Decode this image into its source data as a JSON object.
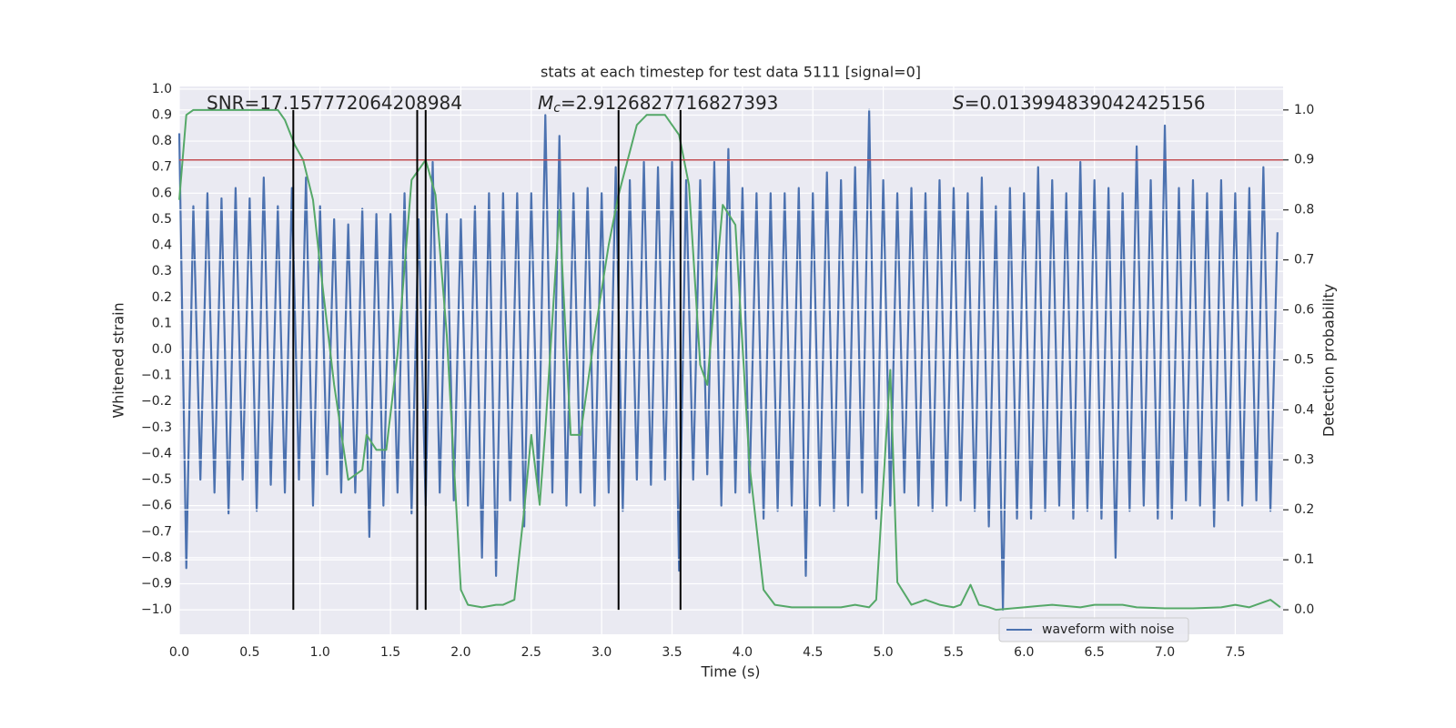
{
  "chart_data": {
    "type": "line",
    "title": "stats at each timestep for test data 5111 [signal=0]",
    "xlabel": "Time (s)",
    "ylabel": "Whitened strain",
    "y2label": "Detection probability",
    "xlim": [
      0,
      7.84
    ],
    "ylim": [
      -1.094,
      1.01
    ],
    "y2lim": [
      -0.049,
      1.047
    ],
    "xticks": [
      {
        "value": 0,
        "label": "0.0"
      },
      0.5,
      {
        "value": 1,
        "label": "1.0"
      },
      1.5,
      {
        "value": 2,
        "label": "2.0"
      },
      2.5,
      {
        "value": 3,
        "label": "3.0"
      },
      3.5,
      {
        "value": 4,
        "label": "4.0"
      },
      4.5,
      {
        "value": 5,
        "label": "5.0"
      },
      5.5,
      {
        "value": 6,
        "label": "6.0"
      },
      6.5,
      {
        "value": 7,
        "label": "7.0"
      },
      7.5
    ],
    "yticks": [
      {
        "value": -1,
        "label": "−1.0"
      },
      {
        "value": -0.9,
        "label": "−0.9"
      },
      {
        "value": -0.8,
        "label": "−0.8"
      },
      {
        "value": -0.7,
        "label": "−0.7"
      },
      {
        "value": -0.6,
        "label": "−0.6"
      },
      {
        "value": -0.5,
        "label": "−0.5"
      },
      {
        "value": -0.4,
        "label": "−0.4"
      },
      {
        "value": -0.3,
        "label": "−0.3"
      },
      {
        "value": -0.2,
        "label": "−0.2"
      },
      {
        "value": -0.1,
        "label": "−0.1"
      },
      {
        "value": 0,
        "label": "0.0"
      },
      0.1,
      0.2,
      0.3,
      0.4,
      0.5,
      0.6,
      0.7,
      0.8,
      0.9,
      {
        "value": 1,
        "label": "1.0"
      }
    ],
    "y2ticks": [
      {
        "value": 0,
        "label": "0.0"
      },
      0.1,
      0.2,
      0.3,
      0.4,
      0.5,
      0.6,
      0.7,
      0.8,
      0.9,
      {
        "value": 1,
        "label": "1.0"
      }
    ],
    "grid": true,
    "legend": "lower right",
    "series": [
      {
        "name": "waveform with noise",
        "color": "#4c72b0",
        "x": [
          0,
          0.05,
          0.1,
          0.15,
          0.2,
          0.25,
          0.3,
          0.35,
          0.4,
          0.45,
          0.5,
          0.55,
          0.6,
          0.65,
          0.7,
          0.75,
          0.8,
          0.85,
          0.9,
          0.95,
          1,
          1.05,
          1.1,
          1.15,
          1.2,
          1.25,
          1.3,
          1.35,
          1.4,
          1.45,
          1.5,
          1.55,
          1.6,
          1.65,
          1.7,
          1.75,
          1.8,
          1.85,
          1.9,
          1.95,
          2,
          2.05,
          2.1,
          2.15,
          2.2,
          2.25,
          2.3,
          2.35,
          2.4,
          2.45,
          2.5,
          2.55,
          2.6,
          2.65,
          2.7,
          2.75,
          2.8,
          2.85,
          2.9,
          2.95,
          3,
          3.05,
          3.1,
          3.15,
          3.2,
          3.25,
          3.3,
          3.35,
          3.4,
          3.45,
          3.5,
          3.55,
          3.6,
          3.65,
          3.7,
          3.75,
          3.8,
          3.85,
          3.9,
          3.95,
          4,
          4.05,
          4.1,
          4.15,
          4.2,
          4.25,
          4.3,
          4.35,
          4.4,
          4.45,
          4.5,
          4.55,
          4.6,
          4.65,
          4.7,
          4.75,
          4.8,
          4.85,
          4.9,
          4.95,
          5,
          5.05,
          5.1,
          5.15,
          5.2,
          5.25,
          5.3,
          5.35,
          5.4,
          5.45,
          5.5,
          5.55,
          5.6,
          5.65,
          5.7,
          5.75,
          5.8,
          5.85,
          5.9,
          5.95,
          6,
          6.05,
          6.1,
          6.15,
          6.2,
          6.25,
          6.3,
          6.35,
          6.4,
          6.45,
          6.5,
          6.55,
          6.6,
          6.65,
          6.7,
          6.75,
          6.8,
          6.85,
          6.9,
          6.95,
          7,
          7.05,
          7.1,
          7.15,
          7.2,
          7.25,
          7.3,
          7.35,
          7.4,
          7.45,
          7.5,
          7.55,
          7.6,
          7.65,
          7.7,
          7.75,
          7.8
        ],
        "values": [
          0.83,
          -0.84,
          0.55,
          -0.5,
          0.6,
          -0.55,
          0.58,
          -0.63,
          0.62,
          -0.5,
          0.58,
          -0.62,
          0.66,
          -0.52,
          0.55,
          -0.55,
          0.62,
          -0.5,
          0.66,
          -0.6,
          0.55,
          -0.48,
          0.5,
          -0.55,
          0.48,
          -0.55,
          0.54,
          -0.72,
          0.52,
          -0.6,
          0.52,
          -0.55,
          0.6,
          -0.63,
          0.5,
          -0.6,
          0.72,
          -0.55,
          0.52,
          -0.58,
          0.5,
          -0.6,
          0.55,
          -0.8,
          0.6,
          -0.87,
          0.6,
          -0.58,
          0.6,
          -0.68,
          0.6,
          -0.55,
          0.9,
          -0.55,
          0.82,
          -0.6,
          0.6,
          -0.55,
          0.62,
          -0.6,
          0.6,
          -0.55,
          0.7,
          -0.62,
          0.65,
          -0.5,
          0.72,
          -0.52,
          0.7,
          -0.5,
          0.72,
          -0.85,
          0.65,
          -0.5,
          0.65,
          -0.48,
          0.72,
          -0.6,
          0.77,
          -0.55,
          0.62,
          -0.55,
          0.6,
          -0.65,
          0.6,
          -0.62,
          0.6,
          -0.6,
          0.62,
          -0.87,
          0.6,
          -0.6,
          0.68,
          -0.62,
          0.65,
          -0.6,
          0.7,
          -0.55,
          0.92,
          -0.65,
          0.65,
          -0.6,
          0.6,
          -0.55,
          0.62,
          -0.6,
          0.6,
          -0.62,
          0.65,
          -0.6,
          0.62,
          -0.58,
          0.6,
          -0.62,
          0.66,
          -0.68,
          0.55,
          -1.0,
          0.62,
          -0.65,
          0.6,
          -0.65,
          0.7,
          -0.62,
          0.65,
          -0.6,
          0.6,
          -0.65,
          0.72,
          -0.62,
          0.65,
          -0.65,
          0.62,
          -0.8,
          0.6,
          -0.62,
          0.78,
          -0.6,
          0.65,
          -0.65,
          0.86,
          -0.65,
          0.62,
          -0.58,
          0.65,
          -0.6,
          0.6,
          -0.68,
          0.65,
          -0.58,
          0.6,
          -0.6,
          0.62,
          -0.58,
          0.7,
          -0.62,
          0.45
        ]
      },
      {
        "color": "#55a868",
        "axis": "y2",
        "x": [
          0,
          0.05,
          0.1,
          0.5,
          0.7,
          0.75,
          0.82,
          0.88,
          0.95,
          1.0,
          1.1,
          1.2,
          1.3,
          1.33,
          1.4,
          1.47,
          1.55,
          1.65,
          1.75,
          1.82,
          1.9,
          2.0,
          2.05,
          2.15,
          2.25,
          2.3,
          2.38,
          2.45,
          2.5,
          2.56,
          2.6,
          2.7,
          2.78,
          2.85,
          2.95,
          3.05,
          3.12,
          3.25,
          3.32,
          3.45,
          3.55,
          3.62,
          3.7,
          3.75,
          3.8,
          3.86,
          3.95,
          4.05,
          4.15,
          4.23,
          4.35,
          4.5,
          4.6,
          4.7,
          4.8,
          4.9,
          4.95,
          5.05,
          5.1,
          5.2,
          5.3,
          5.4,
          5.5,
          5.55,
          5.62,
          5.68,
          5.75,
          5.8,
          6.0,
          6.2,
          6.4,
          6.5,
          6.7,
          6.8,
          7.0,
          7.2,
          7.4,
          7.5,
          7.6,
          7.7,
          7.75,
          7.82
        ],
        "values": [
          0.82,
          0.99,
          1.0,
          1.0,
          1.0,
          0.98,
          0.93,
          0.9,
          0.82,
          0.69,
          0.45,
          0.26,
          0.28,
          0.35,
          0.32,
          0.32,
          0.51,
          0.86,
          0.9,
          0.83,
          0.55,
          0.04,
          0.01,
          0.005,
          0.01,
          0.01,
          0.02,
          0.2,
          0.35,
          0.21,
          0.36,
          0.8,
          0.35,
          0.35,
          0.55,
          0.73,
          0.83,
          0.97,
          0.99,
          0.99,
          0.95,
          0.85,
          0.49,
          0.45,
          0.62,
          0.81,
          0.77,
          0.29,
          0.04,
          0.01,
          0.005,
          0.005,
          0.005,
          0.005,
          0.01,
          0.005,
          0.02,
          0.48,
          0.055,
          0.01,
          0.02,
          0.01,
          0.005,
          0.01,
          0.05,
          0.01,
          0.005,
          0,
          0.005,
          0.01,
          0.005,
          0.01,
          0.01,
          0.005,
          0.003,
          0.003,
          0.005,
          0.01,
          0.005,
          0.015,
          0.02,
          0.005
        ]
      }
    ],
    "threshold": {
      "value": 0.9,
      "axis": "y2",
      "color": "#c44e52"
    },
    "vlines": {
      "x": [
        0.81,
        1.69,
        1.75,
        3.12,
        3.56
      ],
      "span": [
        0,
        1
      ],
      "axis": "y2",
      "color": "#000000"
    },
    "annotations": [
      [
        {
          "text": "SNR=17.157772064208984"
        }
      ],
      [
        {
          "text": "M",
          "style": "italic"
        },
        {
          "text": "c",
          "style": "sub"
        },
        {
          "text": "=2.9126827716827393"
        }
      ],
      [
        {
          "text": "S",
          "style": "italic"
        },
        {
          "text": "=0.013994839042425156"
        }
      ]
    ]
  }
}
